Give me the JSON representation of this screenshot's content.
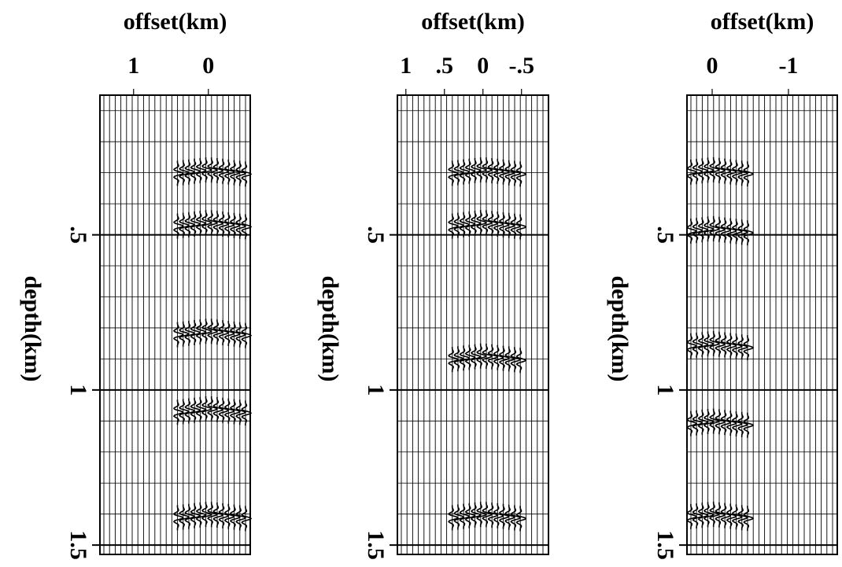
{
  "chart_data": [
    {
      "type": "wiggle",
      "xlabel": "offset(km)",
      "ylabel": "depth(km)",
      "xlim": [
        1.45,
        -0.56
      ],
      "ylim": [
        0.05,
        1.53
      ],
      "xticks": [
        1,
        0
      ],
      "yticks": [
        {
          "value": 0.5,
          "label": ".5"
        },
        1,
        1.5
      ],
      "events": [
        0.29,
        0.46,
        0.81,
        1.06,
        1.4
      ],
      "grid": true
    },
    {
      "type": "wiggle",
      "xlabel": "offset(km)",
      "ylabel": "depth(km)",
      "xlim": [
        1.11,
        -0.85
      ],
      "ylim": [
        0.05,
        1.53
      ],
      "xticks": [
        1,
        {
          "value": 0.5,
          "label": ".5"
        },
        0,
        {
          "value": -0.5,
          "label": "-.5"
        }
      ],
      "yticks": [
        {
          "value": 0.5,
          "label": ".5"
        },
        1,
        1.5
      ],
      "events": [
        0.29,
        0.46,
        0.89,
        1.4
      ],
      "grid": true
    },
    {
      "type": "wiggle",
      "xlabel": "offset(km)",
      "ylabel": "depth(km)",
      "xlim": [
        0.33,
        -1.64
      ],
      "ylim": [
        0.05,
        1.53
      ],
      "xticks": [
        0,
        -1
      ],
      "yticks": [
        {
          "value": 0.5,
          "label": ".5"
        },
        1,
        1.5
      ],
      "events": [
        0.29,
        0.48,
        0.85,
        1.1,
        1.4
      ],
      "grid": true
    }
  ]
}
